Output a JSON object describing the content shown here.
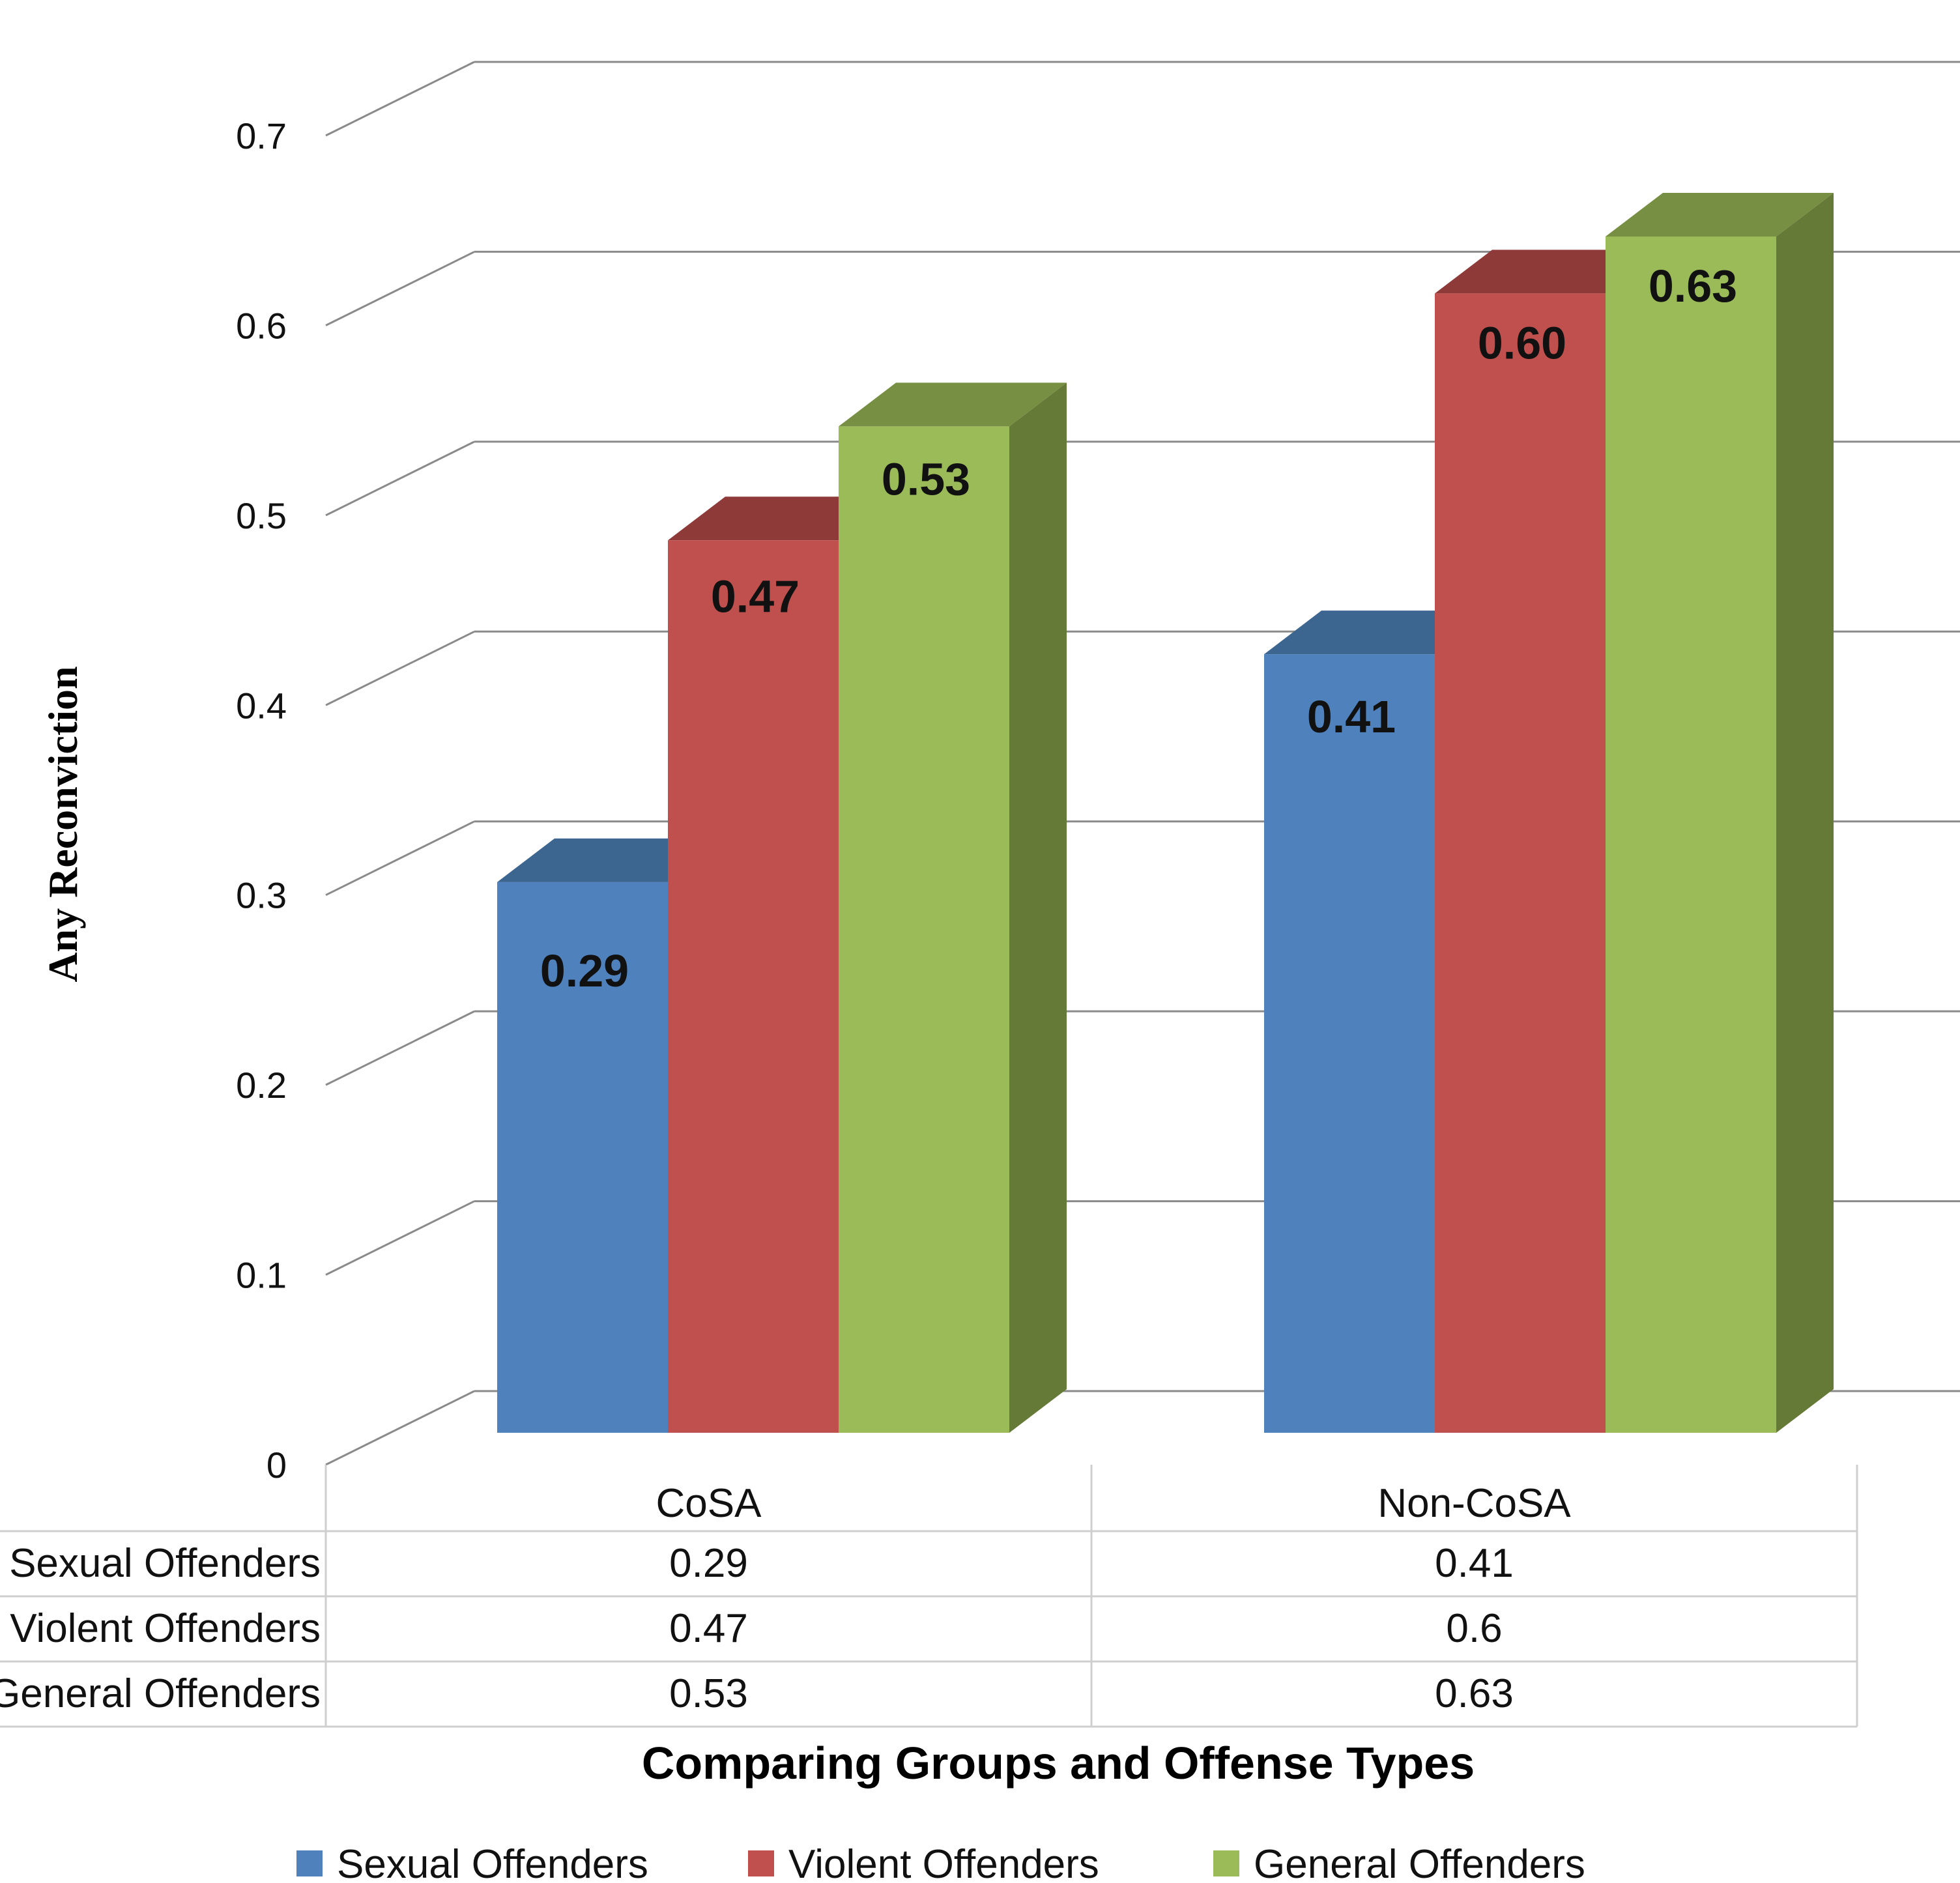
{
  "chart_data": {
    "type": "bar",
    "subtype": "3d-clustered-column-with-data-table",
    "categories": [
      "CoSA",
      "Non-CoSA"
    ],
    "series": [
      {
        "name": "Sexual Offenders",
        "values": [
          0.29,
          0.41
        ],
        "data_labels": [
          "0.29",
          "0.41"
        ],
        "table_values": [
          "0.29",
          "0.41"
        ],
        "color": "#4f81bd",
        "top_color": "#3c6590"
      },
      {
        "name": "Violent Offenders",
        "values": [
          0.47,
          0.6
        ],
        "data_labels": [
          "0.47",
          "0.60"
        ],
        "table_values": [
          "0.47",
          "0.6"
        ],
        "color": "#c0504d",
        "top_color": "#8e3a39"
      },
      {
        "name": "General Offenders",
        "values": [
          0.53,
          0.63
        ],
        "data_labels": [
          "0.53",
          "0.63"
        ],
        "table_values": [
          "0.53",
          "0.63"
        ],
        "color": "#9bbb59",
        "top_color": "#778f42",
        "side_color": "#667a38"
      }
    ],
    "yticks": [
      "0",
      "0.1",
      "0.2",
      "0.3",
      "0.4",
      "0.5",
      "0.6",
      "0.7"
    ],
    "ylim": [
      0,
      0.7
    ],
    "ylabel": "Any Reconviction",
    "xlabel": "Comparing Groups and Offense Types",
    "gridlines": true,
    "legend_position": "bottom",
    "table_row_labels": [
      "Sexual Offenders",
      "Violent Offenders",
      "General Offenders"
    ]
  }
}
